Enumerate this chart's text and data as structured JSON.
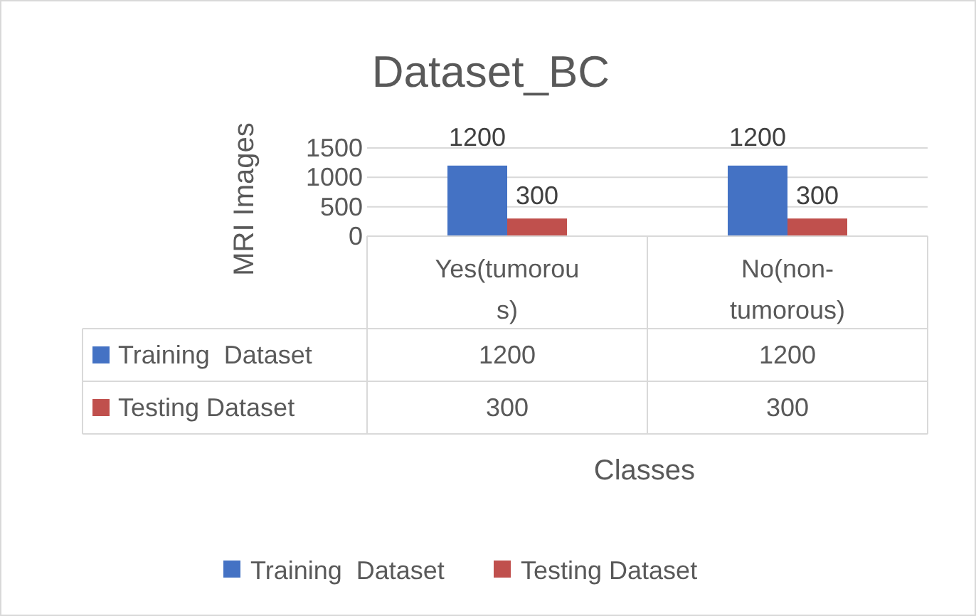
{
  "chart_data": {
    "type": "bar",
    "title": "Dataset_BC",
    "xlabel": "Classes",
    "ylabel": "MRI Images",
    "categories": [
      "Yes(tumorous)",
      "No(non-tumorous)"
    ],
    "series": [
      {
        "name": "Training  Dataset",
        "color": "#4472c4",
        "values": [
          1200,
          1200
        ],
        "value_labels": [
          "1200",
          "1200"
        ]
      },
      {
        "name": "Testing Dataset",
        "color": "#c0504d",
        "values": [
          300,
          300
        ],
        "value_labels": [
          "300",
          "300"
        ]
      }
    ],
    "annotations": [
      "1200",
      "1200",
      "300",
      "300"
    ],
    "ylim": [
      0,
      1500
    ],
    "yticks": [
      0,
      500,
      1000,
      1500
    ],
    "grid": "y",
    "data_labels": true,
    "legend": "bottom"
  }
}
